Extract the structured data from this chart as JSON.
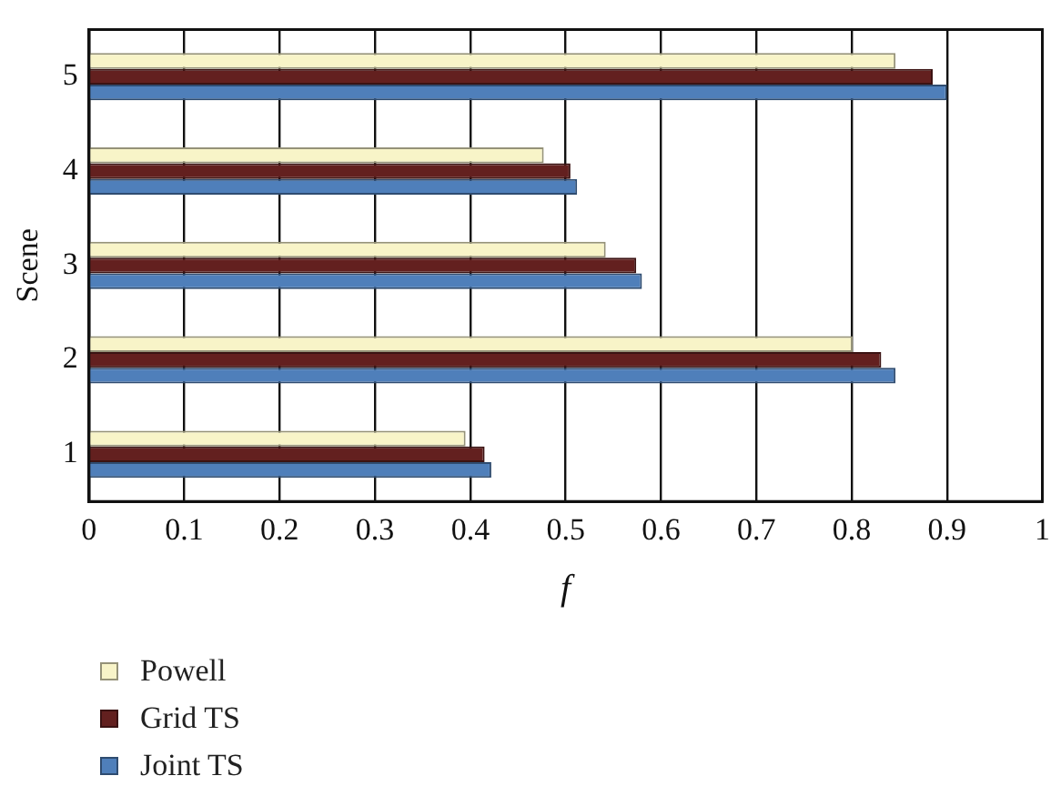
{
  "chart_data": {
    "type": "bar",
    "orientation": "horizontal",
    "xlabel": "f",
    "ylabel": "Scene",
    "categories": [
      "5",
      "4",
      "3",
      "2",
      "1"
    ],
    "series": [
      {
        "name": "Powell",
        "color": "#f8f4c8",
        "values": [
          0.846,
          0.477,
          0.542,
          0.801,
          0.395
        ]
      },
      {
        "name": "Grid TS",
        "color": "#63201f",
        "values": [
          0.885,
          0.505,
          0.574,
          0.831,
          0.415
        ]
      },
      {
        "name": "Joint TS",
        "color": "#4f7fba",
        "values": [
          0.9,
          0.512,
          0.58,
          0.846,
          0.422
        ]
      }
    ],
    "xlim": [
      0,
      1
    ],
    "xticks": [
      0,
      0.1,
      0.2,
      0.3,
      0.4,
      0.5,
      0.6,
      0.7,
      0.8,
      0.9,
      1
    ],
    "grid": "x",
    "legend": "bottom left"
  }
}
